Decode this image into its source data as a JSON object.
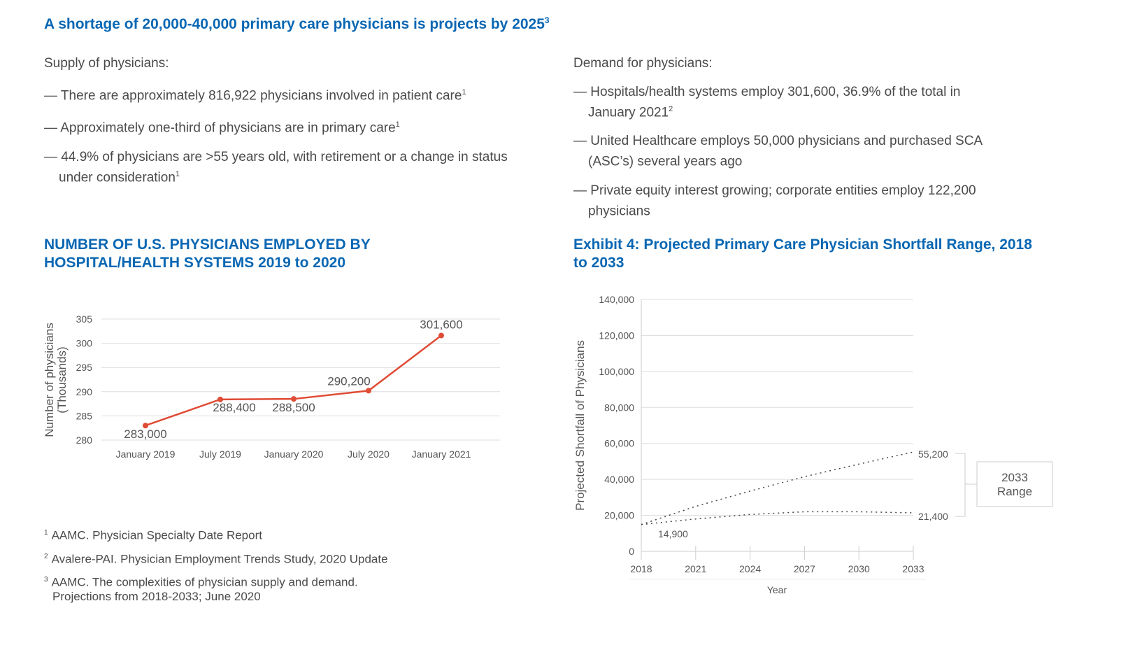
{
  "headline": {
    "text": "A shortage of 20,000-40,000 primary care physicians is projects by 2025",
    "sup": "3"
  },
  "supply": {
    "lead": "Supply of physicians:",
    "items": [
      {
        "text": "— There are approximately 816,922 physicians involved in patient care",
        "sup": "1"
      },
      {
        "text": "— Approximately one-third of physicians are in primary care",
        "sup": "1"
      },
      {
        "text": "— 44.9% of physicians are >55 years old, with retirement or a change in status under consideration",
        "sup": "1"
      }
    ]
  },
  "demand": {
    "lead": "Demand for physicians:",
    "items": [
      {
        "text": "— Hospitals/health systems employ 301,600, 36.9% of the total in January 2021",
        "sup": "2"
      },
      {
        "text": "— United Healthcare employs 50,000 physicians and purchased SCA (ASC’s) several years ago",
        "sup": ""
      },
      {
        "text": "— Private equity interest growing; corporate entities employ 122,200 physicians",
        "sup": ""
      }
    ]
  },
  "footnotes": [
    {
      "sup": "1",
      "text": "AAMC. Physician Specialty Date Report"
    },
    {
      "sup": "2",
      "text": "Avalere-PAI. Physician Employment Trends Study, 2020 Update"
    },
    {
      "sup": "3",
      "text": "AAMC. The complexities of physician supply and demand. Projections from 2018-2033; June 2020"
    }
  ],
  "colors": {
    "accent": "#0a67b3",
    "line": "#e04b35",
    "dotted": "#444444"
  },
  "chart_data": [
    {
      "type": "line",
      "title": "NUMBER OF U.S. PHYSICIANS EMPLOYED BY HOSPITAL/HEALTH SYSTEMS 2019 to 2020",
      "ylabel": "Number of physicians (Thousands)",
      "ylabel_lines": [
        "Number of physicians",
        "(Thousands)"
      ],
      "xlabel": "",
      "categories": [
        "January 2019",
        "July 2019",
        "January 2020",
        "July 2020",
        "January 2021"
      ],
      "values": [
        283.0,
        288.4,
        288.5,
        290.2,
        301.6
      ],
      "data_labels": [
        "283,000",
        "288,400",
        "288,500",
        "290,200",
        "301,600"
      ],
      "ylim": [
        280,
        305
      ],
      "yticks": [
        280,
        285,
        290,
        295,
        300,
        305
      ],
      "grid": true
    },
    {
      "type": "line",
      "title": "Exhibit 4: Projected Primary Care Physician Shortfall Range, 2018 to 2033",
      "ylabel": "Projected Shortfall of Physicians",
      "xlabel": "Year",
      "x": [
        2018,
        2021,
        2024,
        2027,
        2030,
        2033
      ],
      "xticks": [
        "2018",
        "2021",
        "2024",
        "2027",
        "2030",
        "2033"
      ],
      "yticks": [
        "0",
        "20,000",
        "40,000",
        "60,000",
        "80,000",
        "100,000",
        "120,000",
        "140,000"
      ],
      "ylim": [
        0,
        140000
      ],
      "grid": true,
      "series": [
        {
          "values": [
            14900,
            25000,
            33500,
            41500,
            48500,
            55200
          ],
          "style": "dotted"
        },
        {
          "values": [
            14900,
            18000,
            20500,
            22000,
            22000,
            21400
          ],
          "style": "dotted"
        }
      ],
      "annotations": {
        "start": "14,900",
        "high": "55,200",
        "low": "21,400",
        "range_label": [
          "2033",
          "Range"
        ]
      }
    }
  ]
}
